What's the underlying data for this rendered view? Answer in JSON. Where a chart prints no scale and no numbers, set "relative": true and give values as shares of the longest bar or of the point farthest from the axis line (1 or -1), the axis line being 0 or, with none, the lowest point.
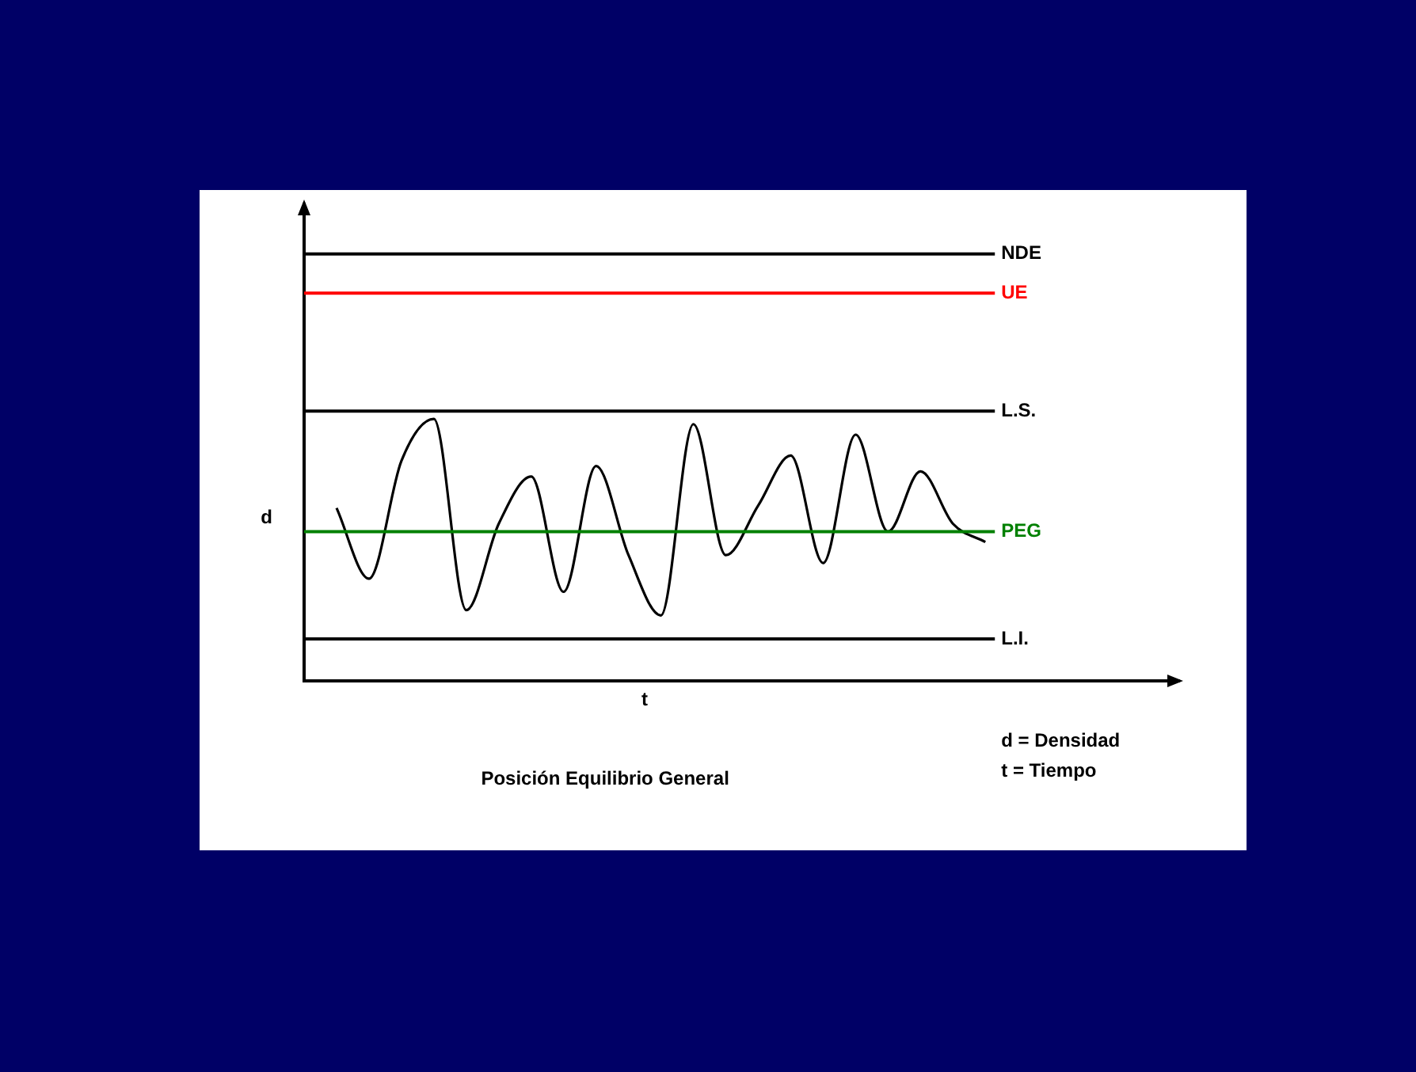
{
  "chart_data": {
    "type": "line",
    "relative": true,
    "title": "Posición Equilibrio General",
    "xlabel": "t",
    "ylabel": "d",
    "categories": [
      null,
      null,
      null,
      null,
      null,
      null,
      null,
      null,
      null,
      null,
      null,
      null,
      null,
      null,
      null,
      null,
      null,
      null,
      null,
      null,
      null,
      null,
      null,
      null,
      null,
      null,
      null,
      null
    ],
    "series": [
      {
        "color": "#000000",
        "values": [
          null,
          0.66,
          0.39,
          0.84,
          1.0,
          0.27,
          0.6,
          0.78,
          0.34,
          0.82,
          0.48,
          0.25,
          0.98,
          0.48,
          0.67,
          0.86,
          0.45,
          0.94,
          0.57,
          0.8,
          0.6,
          0.53,
          null,
          null,
          null,
          null,
          null,
          null
        ]
      }
    ],
    "ref_lines": [
      {
        "axis": "y",
        "value": 1.63,
        "label": "NDE",
        "color": "#000000"
      },
      {
        "axis": "y",
        "value": 1.48,
        "label": "UE",
        "color": "#ff0000"
      },
      {
        "axis": "y",
        "value": 1.03,
        "label": "L.S.",
        "color": "#000000"
      },
      {
        "axis": "y",
        "value": 0.57,
        "label": "PEG",
        "color": "#008000"
      },
      {
        "axis": "y",
        "value": 0.16,
        "label": "L.I.",
        "color": "#000000"
      }
    ],
    "annotations": [
      "d = Densidad",
      "t = Tiempo"
    ],
    "legend": false,
    "marker": "none",
    "line_style": "solid"
  }
}
